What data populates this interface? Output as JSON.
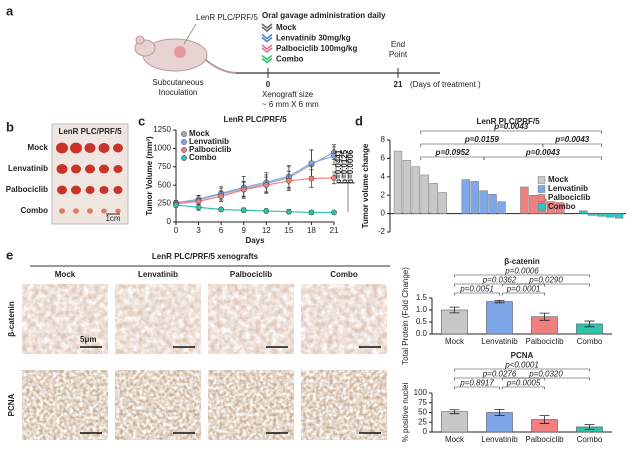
{
  "panel_a": {
    "label": "a",
    "cell_line": "LenR PLC/PRF/5",
    "regimen": "Oral gavage administration daily",
    "arms": [
      "Mock",
      "Lenvatinib 30mg/kg",
      "Palbociclib 100mg/kg",
      "Combo"
    ],
    "inoculation": [
      "Subcutaneous",
      "Inoculation"
    ],
    "start_day": "0",
    "xenograft_size": [
      "Xenograft size",
      "~ 6 mm X 6 mm"
    ],
    "end_day": "21",
    "days_label": "(Days of treatment )",
    "end_point": [
      "End",
      "Point"
    ]
  },
  "panel_b": {
    "label": "b",
    "title": "LenR PLC/PRF/5",
    "rows": [
      "Mock",
      "Lenvatinib",
      "Palbociclib",
      "Combo"
    ],
    "scale": "1cm"
  },
  "panel_c_label": "c",
  "panel_d_label": "d",
  "panel_e": {
    "label": "e",
    "title": "LenR PLC/PRF/5 xenografts",
    "columns": [
      "Mock",
      "Lenvatinib",
      "Palbociclib",
      "Combo"
    ],
    "rows": [
      "β-catenin",
      "PCNA"
    ],
    "scale": "5μm"
  },
  "chart_data": [
    {
      "type": "line",
      "title": "LenR PLC/PRF/5",
      "x_label": "Days",
      "y_label": "Tumor Volume (mm³)",
      "x": [
        0,
        3,
        6,
        9,
        12,
        15,
        18,
        21
      ],
      "xlim": [
        0,
        21
      ],
      "xticks": [
        0,
        3,
        6,
        9,
        12,
        15,
        18,
        21
      ],
      "ylim": [
        0,
        1250
      ],
      "yticks": [
        0,
        250,
        500,
        750,
        1000,
        1250
      ],
      "series": [
        {
          "name": "Mock",
          "color": "#a9a9a9",
          "values": [
            250,
            300,
            380,
            450,
            520,
            600,
            780,
            950
          ],
          "errors": [
            40,
            60,
            80,
            100,
            120,
            150,
            200,
            100
          ]
        },
        {
          "name": "Lenvatinib",
          "color": "#7fa7e8",
          "values": [
            260,
            310,
            390,
            470,
            540,
            620,
            800,
            900
          ],
          "errors": [
            30,
            50,
            90,
            150,
            130,
            150,
            180,
            120
          ]
        },
        {
          "name": "Palbociclib",
          "color": "#f08080",
          "values": [
            250,
            280,
            350,
            440,
            500,
            560,
            590,
            600
          ],
          "errors": [
            30,
            40,
            70,
            100,
            110,
            130,
            120,
            80
          ]
        },
        {
          "name": "Combo",
          "color": "#2ec4a8",
          "values": [
            230,
            200,
            170,
            160,
            150,
            140,
            130,
            130
          ],
          "errors": [
            30,
            40,
            30,
            30,
            30,
            30,
            30,
            20
          ]
        }
      ],
      "annotations": [
        "p=0.0441",
        "p=0.0125",
        "p=0.0006"
      ],
      "legend": "upper left"
    },
    {
      "type": "waterfall",
      "title": "LenR PLC/PRF/5",
      "y_label": "Tumor volume change",
      "ylim": [
        -2,
        8
      ],
      "yticks": [
        -2,
        0,
        2,
        4,
        6,
        8
      ],
      "series": [
        {
          "name": "Mock",
          "color": "#c8c8c8",
          "values": [
            6.8,
            5.8,
            5.1,
            4.2,
            3.3,
            2.3
          ]
        },
        {
          "name": "Lenvatinib",
          "color": "#7fa7e8",
          "values": [
            3.7,
            3.5,
            2.5,
            2.1,
            1.3
          ]
        },
        {
          "name": "Palbociclib",
          "color": "#f08080",
          "values": [
            2.9,
            2.0,
            1.6,
            1.3,
            1.2
          ]
        },
        {
          "name": "Combo",
          "color": "#2ec4c8",
          "values": [
            0.3,
            -0.2,
            -0.3,
            -0.4,
            -0.5
          ]
        }
      ],
      "annotations": [
        "p=0.0043",
        "p=0.0159",
        "p=0.0043",
        "p=0.0952",
        "p=0.0043"
      ],
      "legend": "upper right"
    },
    {
      "type": "bar",
      "title": "β-catenin",
      "y_label": "Total Protein (Fold Change)",
      "categories": [
        "Mock",
        "Lenvatinib",
        "Palbociclib",
        "Combo"
      ],
      "colors": [
        "#c8c8c8",
        "#7fa7e8",
        "#f08080",
        "#2ec4a8"
      ],
      "values": [
        1.0,
        1.35,
        0.72,
        0.42
      ],
      "errors": [
        0.12,
        0.05,
        0.15,
        0.12
      ],
      "ylim": [
        0,
        1.5
      ],
      "yticks": [
        {
          "value": 0,
          "label": "0.0"
        },
        0.5,
        {
          "value": 1,
          "label": "1.0"
        },
        1.5
      ],
      "annotations": [
        "p=0.0006",
        "p=0.0362",
        "p=0.0290",
        "p=0.0051",
        "p=0.0001"
      ]
    },
    {
      "type": "bar",
      "title": "PCNA",
      "y_label": "% positive nuclei",
      "categories": [
        "Mock",
        "Lenvatinib",
        "Palbociclib",
        "Combo"
      ],
      "colors": [
        "#c8c8c8",
        "#7fa7e8",
        "#f08080",
        "#2ec4a8"
      ],
      "values": [
        52,
        50,
        32,
        13
      ],
      "errors": [
        5,
        8,
        10,
        6
      ],
      "ylim": [
        0,
        100
      ],
      "yticks": [
        0,
        25,
        50,
        75,
        100
      ],
      "annotations": [
        "p<0.0001",
        "p=0.0276",
        "p=0.0320",
        "p=0.8917",
        "p=0.0005"
      ]
    }
  ]
}
